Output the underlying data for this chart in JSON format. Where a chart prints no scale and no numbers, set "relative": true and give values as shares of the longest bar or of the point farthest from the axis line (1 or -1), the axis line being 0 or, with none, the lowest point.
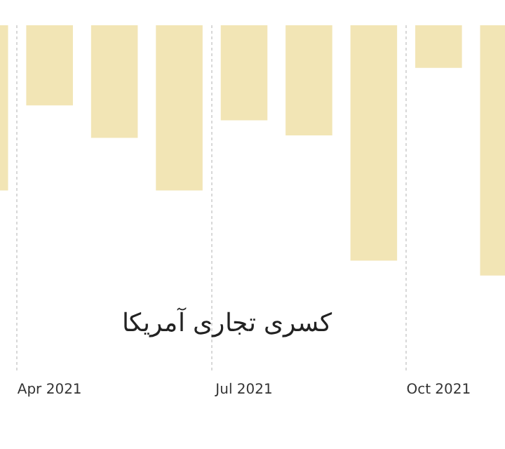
{
  "chart_data": {
    "type": "bar",
    "title": "کسری تجاری آمریکا",
    "relative": true,
    "grid": "x",
    "categories": [
      null,
      "Apr 2021",
      null,
      null,
      "Jul 2021",
      null,
      null,
      "Oct 2021",
      null
    ],
    "values": [
      -0.66,
      -0.32,
      -0.45,
      -0.66,
      -0.38,
      -0.44,
      -0.94,
      -0.17,
      -1
    ],
    "color": "#f2e5b5"
  }
}
